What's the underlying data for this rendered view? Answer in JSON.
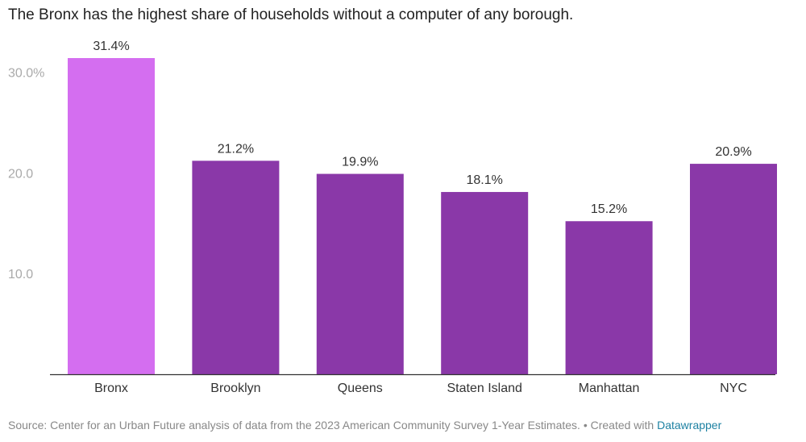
{
  "chart_data": {
    "type": "bar",
    "title": "The Bronx has the highest share of households without a computer of any borough.",
    "categories": [
      "Bronx",
      "Brooklyn",
      "Queens",
      "Staten Island",
      "Manhattan",
      "NYC"
    ],
    "values": [
      31.4,
      21.2,
      19.9,
      18.1,
      15.2,
      20.9
    ],
    "value_labels": [
      "31.4%",
      "21.2%",
      "19.9%",
      "18.1%",
      "15.2%",
      "20.9%"
    ],
    "yticks": [
      {
        "value": 10,
        "label": "10.0"
      },
      {
        "value": 20,
        "label": "20.0"
      },
      {
        "value": 30,
        "label": "30.0%"
      }
    ],
    "ylim": [
      0,
      31.4
    ],
    "grid": false,
    "legend": "none",
    "xlabel": "",
    "ylabel": "",
    "colors": {
      "highlight": "#d46ef0",
      "default": "#8a38a8",
      "axis": "#333333",
      "tick_label": "#aaaaaa",
      "value_label": "#333333"
    },
    "highlight_index": 0
  },
  "footer": {
    "source_text": "Source: Center for an Urban Future analysis of data from the 2023 American Community Survey 1-Year Estimates. • Created with ",
    "brand": "Datawrapper"
  }
}
